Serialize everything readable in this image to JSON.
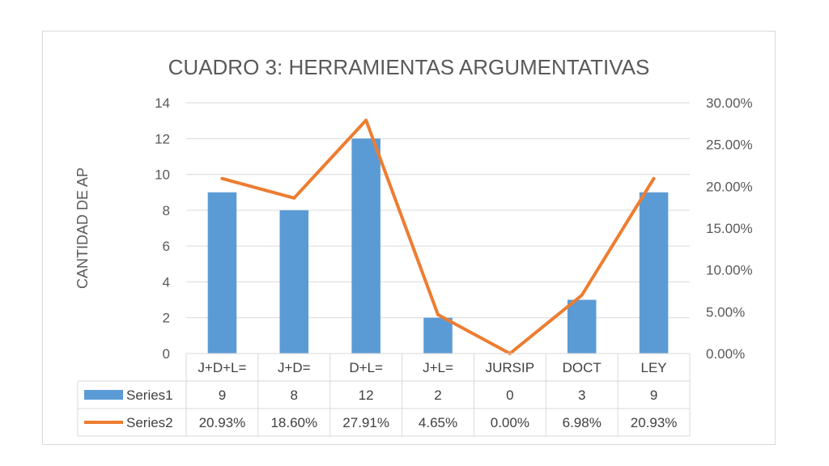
{
  "chart_data": {
    "type": "bar",
    "title": "CUADRO 3: HERRAMIENTAS ARGUMENTATIVAS",
    "ylabel": "CANTIDAD DE AP",
    "categories": [
      "J+D+L=",
      "J+D=",
      "D+L=",
      "J+L=",
      "JURSIP",
      "DOCT",
      "LEY"
    ],
    "series": [
      {
        "name": "Series1",
        "type": "bar",
        "axis": "left",
        "color": "#5b9bd5",
        "values": [
          9,
          8,
          12,
          2,
          0,
          3,
          9
        ],
        "labels": [
          "9",
          "8",
          "12",
          "2",
          "0",
          "3",
          "9"
        ]
      },
      {
        "name": "Series2",
        "type": "line",
        "axis": "right",
        "color": "#ed7d31",
        "values": [
          0.2093,
          0.186,
          0.2791,
          0.0465,
          0.0,
          0.0698,
          0.2093
        ],
        "labels": [
          "20.93%",
          "18.60%",
          "27.91%",
          "4.65%",
          "0.00%",
          "6.98%",
          "20.93%"
        ]
      }
    ],
    "ylim_left": [
      0,
      14
    ],
    "yticks_left": [
      "0",
      "2",
      "4",
      "6",
      "8",
      "10",
      "12",
      "14"
    ],
    "ylim_right": [
      0,
      0.3
    ],
    "yticks_right": [
      "0.00%",
      "5.00%",
      "10.00%",
      "15.00%",
      "20.00%",
      "25.00%",
      "30.00%"
    ],
    "grid": true,
    "legend": "data-table"
  }
}
